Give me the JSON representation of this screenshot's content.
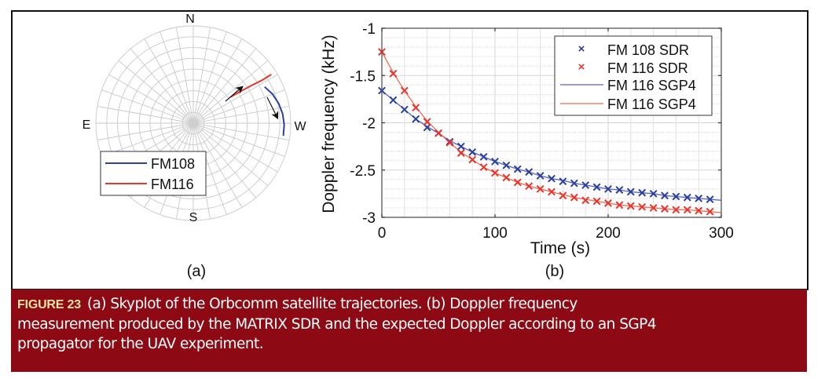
{
  "figure": {
    "label": "FIGURE 23",
    "caption": "(a) Skyplot of the Orbcomm satellite trajectories. (b) Doppler frequency measurement produced by the MATRIX SDR and the expected Doppler according to an SGP4 propagator for the UAV experiment.",
    "caption_lines": [
      "(a) Skyplot of the Orbcomm satellite trajectories. (b) Doppler frequency",
      "measurement produced by the MATRIX SDR and the expected Doppler according to an SGP4",
      "propagator for the UAV experiment."
    ],
    "caption_color": "#8d0a14",
    "label_color": "#f6e3a8"
  },
  "chart_data": [
    {
      "type": "polar",
      "panel_label": "(a)",
      "title": "Skyplot",
      "directions": {
        "north": "N",
        "south": "S",
        "east": "E",
        "west": "W"
      },
      "elevation_rings_deg": [
        0,
        10,
        20,
        30,
        40,
        50,
        60,
        70,
        80
      ],
      "azimuth_spoke_step_deg": 10,
      "grid": true,
      "legend_position": "bottom-left",
      "series": [
        {
          "name": "FM108",
          "color": "#2b3f9e",
          "shape": "arc",
          "azimuth_deg": [
            297,
            290,
            283,
            276,
            269,
            262
          ],
          "elevation_deg": [
            16,
            12,
            9,
            7,
            6,
            6
          ]
        },
        {
          "name": "FM116",
          "color": "#e8352d",
          "shape": "line",
          "azimuth_deg": [
            305,
            304,
            303,
            302,
            302
          ],
          "elevation_deg": [
            48,
            37,
            26,
            15,
            5
          ]
        }
      ],
      "arrows": [
        {
          "series": "FM116",
          "direction": "outward-northwest"
        },
        {
          "series": "FM108",
          "direction": "southward"
        }
      ]
    },
    {
      "type": "line",
      "panel_label": "(b)",
      "title": "",
      "xlabel": "Time (s)",
      "ylabel": "Doppler frequency (kHz)",
      "xlim": [
        0,
        300
      ],
      "ylim": [
        -3,
        -1
      ],
      "xticks": [
        0,
        100,
        200,
        300
      ],
      "yticks": [
        -1,
        -1.5,
        -2,
        -2.5,
        -3
      ],
      "ytick_labels": [
        "-1",
        "-1.5",
        "-2",
        "-2.5",
        "-3"
      ],
      "grid": true,
      "minor_grid": true,
      "legend_position": "top-right",
      "x": [
        0,
        10,
        20,
        30,
        40,
        50,
        60,
        70,
        80,
        90,
        100,
        110,
        120,
        130,
        140,
        150,
        160,
        170,
        180,
        190,
        200,
        210,
        220,
        230,
        240,
        250,
        260,
        270,
        280,
        290
      ],
      "series": [
        {
          "name": "FM 108 SDR",
          "style": "marker-x",
          "color": "#2b3f9e",
          "values": [
            -1.66,
            -1.76,
            -1.86,
            -1.96,
            -2.05,
            -2.11,
            -2.2,
            -2.25,
            -2.31,
            -2.36,
            -2.41,
            -2.45,
            -2.49,
            -2.52,
            -2.56,
            -2.59,
            -2.62,
            -2.64,
            -2.66,
            -2.68,
            -2.7,
            -2.71,
            -2.73,
            -2.74,
            -2.75,
            -2.77,
            -2.78,
            -2.79,
            -2.8,
            -2.81
          ]
        },
        {
          "name": "FM 116 SDR",
          "style": "marker-x",
          "color": "#e8352d",
          "values": [
            -1.25,
            -1.48,
            -1.66,
            -1.84,
            -1.99,
            -2.11,
            -2.21,
            -2.32,
            -2.39,
            -2.47,
            -2.53,
            -2.58,
            -2.63,
            -2.67,
            -2.7,
            -2.73,
            -2.77,
            -2.79,
            -2.82,
            -2.83,
            -2.85,
            -2.87,
            -2.88,
            -2.89,
            -2.9,
            -2.91,
            -2.92,
            -2.92,
            -2.93,
            -2.94
          ]
        },
        {
          "name": "FM 116 SGP4",
          "style": "line",
          "color": "#5563c9",
          "values": [
            -1.66,
            -1.76,
            -1.86,
            -1.96,
            -2.04,
            -2.11,
            -2.19,
            -2.25,
            -2.31,
            -2.36,
            -2.41,
            -2.45,
            -2.49,
            -2.52,
            -2.56,
            -2.59,
            -2.61,
            -2.64,
            -2.66,
            -2.68,
            -2.7,
            -2.71,
            -2.73,
            -2.74,
            -2.75,
            -2.77,
            -2.78,
            -2.79,
            -2.8,
            -2.81
          ]
        },
        {
          "name": "FM 116 SGP4",
          "style": "line",
          "color": "#f26a4f",
          "values": [
            -1.25,
            -1.47,
            -1.66,
            -1.83,
            -1.98,
            -2.1,
            -2.21,
            -2.31,
            -2.39,
            -2.47,
            -2.53,
            -2.58,
            -2.63,
            -2.67,
            -2.7,
            -2.73,
            -2.76,
            -2.79,
            -2.81,
            -2.83,
            -2.85,
            -2.87,
            -2.88,
            -2.89,
            -2.9,
            -2.91,
            -2.92,
            -2.92,
            -2.93,
            -2.94
          ]
        }
      ]
    }
  ]
}
